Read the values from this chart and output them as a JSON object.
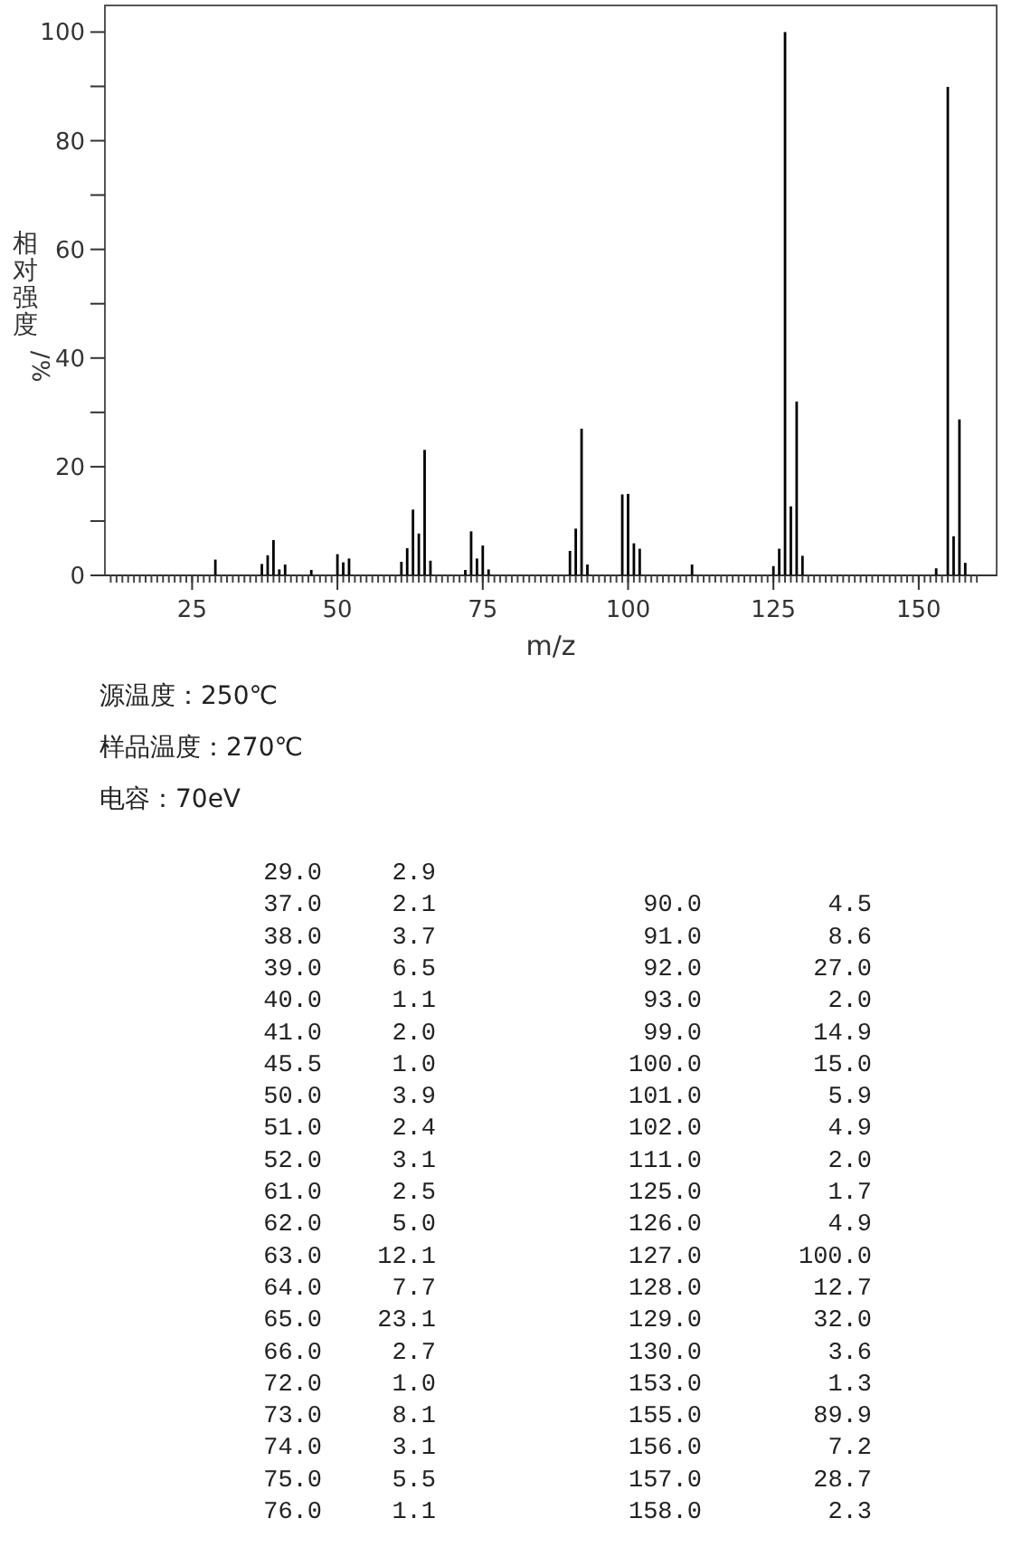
{
  "chart_data": [
    {
      "type": "bar",
      "xlabel": "m/z",
      "ylabel": "相对强度/%",
      "annotations": [
        "源温度：250℃",
        "样品温度：270℃",
        "电容：70eV"
      ],
      "x": [
        29.0,
        37.0,
        38.0,
        39.0,
        40.0,
        41.0,
        45.5,
        50.0,
        51.0,
        52.0,
        61.0,
        62.0,
        63.0,
        64.0,
        65.0,
        66.0,
        72.0,
        73.0,
        74.0,
        75.0,
        76.0,
        90.0,
        91.0,
        92.0,
        93.0,
        99.0,
        100.0,
        101.0,
        102.0,
        111.0,
        125.0,
        126.0,
        127.0,
        128.0,
        129.0,
        130.0,
        153.0,
        155.0,
        156.0,
        157.0,
        158.0
      ],
      "values": [
        2.9,
        2.1,
        3.7,
        6.5,
        1.1,
        2.0,
        1.0,
        3.9,
        2.4,
        3.1,
        2.5,
        5.0,
        12.1,
        7.7,
        23.1,
        2.7,
        1.0,
        8.1,
        3.1,
        5.5,
        1.1,
        4.5,
        8.6,
        27.0,
        2.0,
        14.9,
        15.0,
        5.9,
        4.9,
        2.0,
        1.7,
        4.9,
        100.0,
        12.7,
        32.0,
        3.6,
        1.3,
        89.9,
        7.2,
        28.7,
        2.3
      ],
      "color": "#000000",
      "xlim": [
        10,
        163.4
      ],
      "ylim": [
        0,
        104.9
      ],
      "xticks": [
        25,
        50,
        75,
        100,
        125,
        150
      ],
      "yticks": [
        0,
        {
          "value": 10,
          "label": null
        },
        20,
        {
          "value": 30,
          "label": null
        },
        40,
        {
          "value": 50,
          "label": null
        },
        60,
        {
          "value": 70,
          "label": null
        },
        80,
        {
          "value": 90,
          "label": null
        },
        100
      ]
    },
    {
      "type": "other",
      "annotations": [
        "29.0",
        "2.9",
        "37.0",
        "2.1",
        "38.0",
        "3.7",
        "39.0",
        "6.5",
        "40.0",
        "1.1",
        "41.0",
        "2.0",
        "45.5",
        "1.0",
        "50.0",
        "3.9",
        "51.0",
        "2.4",
        "52.0",
        "3.1",
        "61.0",
        "2.5",
        "62.0",
        "5.0",
        "63.0",
        "12.1",
        "64.0",
        "7.7",
        "65.0",
        "23.1",
        "66.0",
        "2.7",
        "72.0",
        "1.0",
        "73.0",
        "8.1",
        "74.0",
        "3.1",
        "75.0",
        "5.5",
        "76.0",
        "1.1",
        "90.0",
        "4.5",
        "91.0",
        "8.6",
        "92.0",
        "27.0",
        "93.0",
        "2.0",
        "99.0",
        "14.9",
        "100.0",
        "15.0",
        "101.0",
        "5.9",
        "102.0",
        "4.9",
        "111.0",
        "2.0",
        "125.0",
        "1.7",
        "126.0",
        "4.9",
        "127.0",
        "100.0",
        "128.0",
        "12.7",
        "129.0",
        "32.0",
        "130.0",
        "3.6",
        "153.0",
        "1.3",
        "155.0",
        "89.9",
        "156.0",
        "7.2",
        "157.0",
        "28.7",
        "158.0",
        "2.3"
      ]
    }
  ]
}
